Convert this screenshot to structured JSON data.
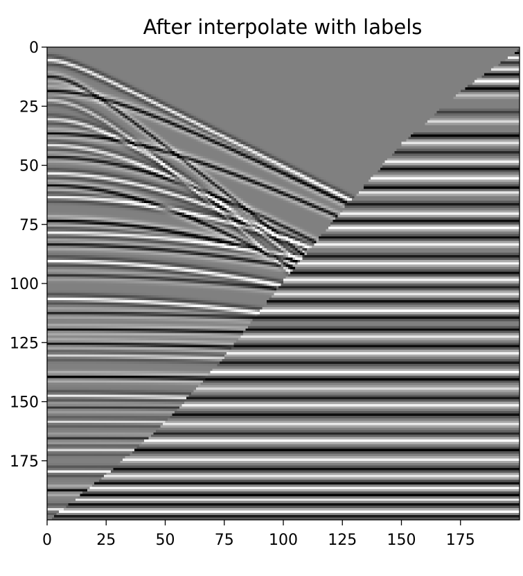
{
  "chart_data": {
    "type": "heatmap",
    "title": "After interpolate with labels",
    "xlabel": "",
    "ylabel": "",
    "x_ticks": [
      0,
      25,
      50,
      75,
      100,
      125,
      150,
      175
    ],
    "y_ticks": [
      0,
      25,
      50,
      75,
      100,
      125,
      150,
      175
    ],
    "xlim": [
      0,
      200
    ],
    "ylim": [
      200,
      0
    ],
    "grid": false,
    "colormap": "gray",
    "colors": {
      "background": "#ffffff",
      "axis": "#000000",
      "mid_gray": "#808080"
    },
    "wedge_boundary": [
      [
        200,
        0
      ],
      [
        175,
        18
      ],
      [
        150,
        40
      ],
      [
        125,
        68
      ],
      [
        100,
        98
      ],
      [
        75,
        130
      ],
      [
        50,
        158
      ],
      [
        25,
        180
      ],
      [
        0,
        200
      ]
    ],
    "curved_events": [
      {
        "y0": 5,
        "curvature": 10,
        "amplitude": 0.9
      },
      {
        "y0": 12,
        "curvature": 16,
        "amplitude": -0.8
      },
      {
        "y0": 18,
        "curvature": 10,
        "amplitude": -0.9
      },
      {
        "y0": 22,
        "curvature": 18,
        "amplitude": 0.6
      },
      {
        "y0": 30,
        "curvature": 16,
        "amplitude": 0.8
      },
      {
        "y0": 36,
        "curvature": 10,
        "amplitude": -0.9
      },
      {
        "y0": 41,
        "curvature": 14,
        "amplitude": 0.8
      },
      {
        "y0": 46,
        "curvature": 12,
        "amplitude": -0.8
      },
      {
        "y0": 53,
        "curvature": 12,
        "amplitude": 0.9
      },
      {
        "y0": 58,
        "curvature": 14,
        "amplitude": -0.9
      },
      {
        "y0": 63,
        "curvature": 10,
        "amplitude": 0.9
      },
      {
        "y0": 73,
        "curvature": 10,
        "amplitude": -1.0
      },
      {
        "y0": 78,
        "curvature": 8,
        "amplitude": 0.9
      },
      {
        "y0": 83,
        "curvature": 8,
        "amplitude": -0.8
      },
      {
        "y0": 90,
        "curvature": 9,
        "amplitude": 1.0
      },
      {
        "y0": 96,
        "curvature": 7,
        "amplitude": -0.6
      },
      {
        "y0": 106,
        "curvature": 8,
        "amplitude": 1.0
      },
      {
        "y0": 112,
        "curvature": 5,
        "amplitude": -0.7
      },
      {
        "y0": 119,
        "curvature": 4,
        "amplitude": -0.9
      },
      {
        "y0": 125,
        "curvature": 5,
        "amplitude": -0.9
      },
      {
        "y0": 130,
        "curvature": 5,
        "amplitude": 0.7
      },
      {
        "y0": 139,
        "curvature": 4,
        "amplitude": -1.0
      },
      {
        "y0": 147,
        "curvature": 5,
        "amplitude": 0.9
      },
      {
        "y0": 152,
        "curvature": 3,
        "amplitude": -0.6
      },
      {
        "y0": 158,
        "curvature": 3,
        "amplitude": 0.7
      },
      {
        "y0": 165,
        "curvature": 3,
        "amplitude": -0.6
      },
      {
        "y0": 170,
        "curvature": 2,
        "amplitude": 0.7
      },
      {
        "y0": 179,
        "curvature": 2,
        "amplitude": 0.9
      },
      {
        "y0": 187,
        "curvature": 1,
        "amplitude": -0.9
      },
      {
        "y0": 195,
        "curvature": 1,
        "amplitude": 0.8
      }
    ],
    "flat_bands": [
      {
        "y": 2,
        "value": -1.0
      },
      {
        "y": 4,
        "value": 0.9
      },
      {
        "y": 6,
        "value": -0.6
      },
      {
        "y": 9,
        "value": 0.8
      },
      {
        "y": 11,
        "value": -0.9
      },
      {
        "y": 14,
        "value": 1.0
      },
      {
        "y": 17,
        "value": -1.0
      },
      {
        "y": 20,
        "value": 0.5
      },
      {
        "y": 27,
        "value": -0.5
      },
      {
        "y": 31,
        "value": 0.7
      },
      {
        "y": 37,
        "value": -1.0
      },
      {
        "y": 40,
        "value": 0.8
      },
      {
        "y": 44,
        "value": -0.7
      },
      {
        "y": 48,
        "value": 0.9
      },
      {
        "y": 51,
        "value": -0.9
      },
      {
        "y": 55,
        "value": 1.0
      },
      {
        "y": 59,
        "value": -1.0
      },
      {
        "y": 61,
        "value": 0.8
      },
      {
        "y": 66,
        "value": -0.8
      },
      {
        "y": 70,
        "value": 0.9
      },
      {
        "y": 73,
        "value": -0.9
      },
      {
        "y": 76,
        "value": 1.0
      },
      {
        "y": 80,
        "value": -0.9
      },
      {
        "y": 83,
        "value": 0.9
      },
      {
        "y": 88,
        "value": -0.8
      },
      {
        "y": 91,
        "value": 1.0
      },
      {
        "y": 95,
        "value": -0.9
      },
      {
        "y": 98,
        "value": 0.9
      },
      {
        "y": 101,
        "value": -0.7
      },
      {
        "y": 104,
        "value": 0.8
      },
      {
        "y": 107,
        "value": -0.9
      },
      {
        "y": 111,
        "value": 1.0
      },
      {
        "y": 114,
        "value": -0.9
      },
      {
        "y": 119,
        "value": -0.9
      },
      {
        "y": 122,
        "value": 0.8
      },
      {
        "y": 126,
        "value": -0.9
      },
      {
        "y": 129,
        "value": 0.9
      },
      {
        "y": 133,
        "value": -0.8
      },
      {
        "y": 137,
        "value": 1.0
      },
      {
        "y": 140,
        "value": -1.0
      },
      {
        "y": 144,
        "value": 0.7
      },
      {
        "y": 148,
        "value": -0.8
      },
      {
        "y": 151,
        "value": 0.9
      },
      {
        "y": 155,
        "value": -0.9
      },
      {
        "y": 159,
        "value": 0.8
      },
      {
        "y": 163,
        "value": -0.7
      },
      {
        "y": 166,
        "value": 1.0
      },
      {
        "y": 170,
        "value": -1.0
      },
      {
        "y": 174,
        "value": 0.9
      },
      {
        "y": 178,
        "value": -0.9
      },
      {
        "y": 181,
        "value": 0.8
      },
      {
        "y": 184,
        "value": -0.9
      },
      {
        "y": 186,
        "value": 1.0
      },
      {
        "y": 189,
        "value": -1.0
      },
      {
        "y": 191,
        "value": 0.9
      },
      {
        "y": 193,
        "value": -0.9
      },
      {
        "y": 196,
        "value": 1.0
      },
      {
        "y": 198,
        "value": -0.8
      }
    ]
  }
}
